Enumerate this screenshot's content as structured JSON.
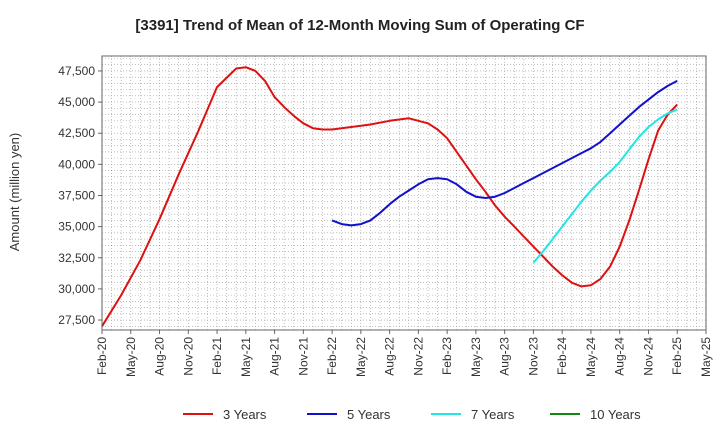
{
  "chart_data": {
    "type": "line",
    "title": "[3391]  Trend of Mean of 12-Month Moving Sum of Operating CF",
    "xlabel": "",
    "ylabel": "Amount (million yen)",
    "ylim": [
      26700,
      48700
    ],
    "y_ticks": [
      27500,
      30000,
      32500,
      35000,
      37500,
      40000,
      42500,
      45000,
      47500
    ],
    "y_tick_labels": [
      "27,500",
      "30,000",
      "32,500",
      "35,000",
      "37,500",
      "40,000",
      "42,500",
      "45,000",
      "47,500"
    ],
    "x_tick_labels": [
      "Feb-20",
      "May-20",
      "Aug-20",
      "Nov-20",
      "Feb-21",
      "May-21",
      "Aug-21",
      "Nov-21",
      "Feb-22",
      "May-22",
      "Aug-22",
      "Nov-22",
      "Feb-23",
      "May-23",
      "Aug-23",
      "Nov-23",
      "Feb-24",
      "May-24",
      "Aug-24",
      "Nov-24",
      "Feb-25",
      "May-25"
    ],
    "x_range_months": [
      0,
      63
    ],
    "grid": true,
    "legend_position": "bottom",
    "series": [
      {
        "name": "3 Years",
        "color": "#dd1111",
        "x": [
          0,
          2,
          4,
          6,
          8,
          10,
          12,
          14,
          15,
          16,
          17,
          18,
          19,
          20,
          21,
          22,
          23,
          24,
          25,
          26,
          27,
          28,
          30,
          32,
          34,
          35,
          36,
          37,
          38,
          39,
          40,
          41,
          42,
          43,
          44,
          45,
          46,
          47,
          48,
          49,
          50,
          51,
          52,
          53,
          54,
          55,
          56,
          57,
          58,
          59,
          60
        ],
        "y": [
          27000,
          29500,
          32300,
          35600,
          39200,
          42600,
          46200,
          47700,
          47800,
          47500,
          46700,
          45400,
          44600,
          43900,
          43300,
          42900,
          42800,
          42800,
          42900,
          43000,
          43100,
          43200,
          43500,
          43700,
          43300,
          42800,
          42100,
          41000,
          39900,
          38800,
          37800,
          36700,
          35800,
          35000,
          34200,
          33400,
          32600,
          31800,
          31100,
          30500,
          30200,
          30300,
          30800,
          31800,
          33400,
          35500,
          37900,
          40400,
          42700,
          44000,
          44800
        ]
      },
      {
        "name": "5 Years",
        "color": "#1111cc",
        "x": [
          24,
          25,
          26,
          27,
          28,
          29,
          30,
          31,
          32,
          33,
          34,
          35,
          36,
          37,
          38,
          39,
          40,
          41,
          42,
          43,
          44,
          45,
          46,
          47,
          48,
          49,
          50,
          51,
          52,
          53,
          54,
          55,
          56,
          57,
          58,
          59,
          60
        ],
        "y": [
          35500,
          35200,
          35100,
          35200,
          35500,
          36100,
          36800,
          37400,
          37900,
          38400,
          38800,
          38900,
          38800,
          38400,
          37800,
          37400,
          37300,
          37400,
          37700,
          38100,
          38500,
          38900,
          39300,
          39700,
          40100,
          40500,
          40900,
          41300,
          41800,
          42500,
          43200,
          43900,
          44600,
          45200,
          45800,
          46300,
          46700
        ]
      },
      {
        "name": "7 Years",
        "color": "#22e6e6",
        "x": [
          45,
          46,
          47,
          48,
          49,
          50,
          51,
          52,
          53,
          54,
          55,
          56,
          57,
          58,
          59,
          60
        ],
        "y": [
          32100,
          33000,
          34000,
          35000,
          36000,
          37000,
          37900,
          38700,
          39400,
          40200,
          41200,
          42200,
          43000,
          43600,
          44100,
          44400
        ]
      },
      {
        "name": "10 Years",
        "color": "#118811",
        "x": [],
        "y": []
      }
    ]
  }
}
